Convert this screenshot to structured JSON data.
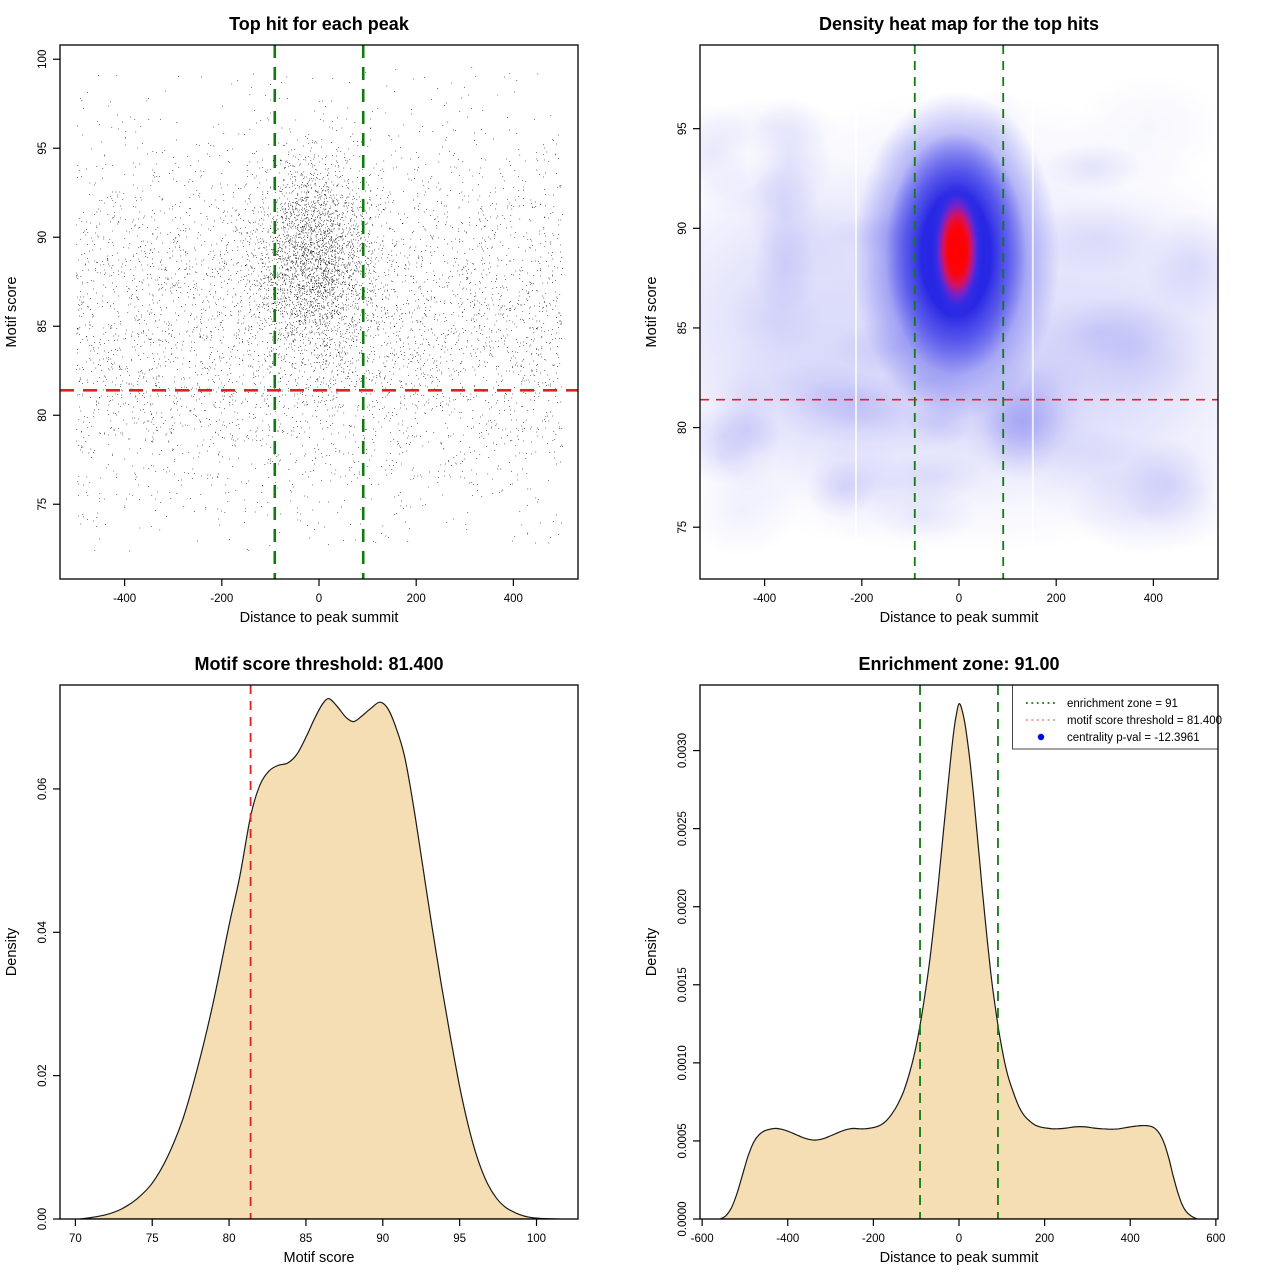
{
  "colors": {
    "threshold_red": "#de2222",
    "zone_green": "#127a12",
    "legend_red": "#f28c8c",
    "legend_blue": "#0008f0",
    "density_fill": "#f5deb3",
    "curve": "#1a1a1a",
    "heat_blue": "#4040e8",
    "heat_core_red": "#ff0000",
    "points": "#000000"
  },
  "legend": {
    "items": [
      {
        "label": "enrichment zone = 91",
        "sample": "dotted",
        "color_key": "zone_green"
      },
      {
        "label": "motif score threshold = 81.400",
        "sample": "dotted",
        "color_key": "legend_red"
      },
      {
        "label": "centrality p-val = -12.3961",
        "sample": "dot",
        "color_key": "legend_blue"
      }
    ]
  },
  "values": {
    "motif_score_threshold": 81.4,
    "enrichment_zone": 91,
    "centrality_p_val": -12.3961
  },
  "chart_data": [
    {
      "id": "scatter",
      "type": "scatter",
      "title": "Top hit for each peak",
      "xlabel": "Distance to peak summit",
      "ylabel": "Motif score",
      "xlim": [
        -533,
        533
      ],
      "ylim": [
        70.8,
        100.8
      ],
      "xticks": [
        -400,
        -200,
        0,
        200,
        400
      ],
      "xtick_labels": [
        "-400",
        "-200",
        "0",
        "200",
        "400"
      ],
      "yticks": [
        75,
        80,
        85,
        90,
        95,
        100
      ],
      "ytick_labels": [
        "75",
        "80",
        "85",
        "90",
        "95",
        "100"
      ],
      "grid": false,
      "vlines": [
        {
          "x": -91,
          "color": "zone_green",
          "width": 2.6,
          "dash": "13,9",
          "name": "enrichment-zone-line-left"
        },
        {
          "x": 91,
          "color": "zone_green",
          "width": 2.6,
          "dash": "13,9",
          "name": "enrichment-zone-line-right"
        }
      ],
      "hlines": [
        {
          "y": 81.4,
          "color": "threshold_red",
          "width": 2.6,
          "dash": "14,9",
          "name": "motif-threshold-line"
        }
      ],
      "points_spec": {
        "seed": 7,
        "marker_size": 1.0,
        "background": {
          "n": 4700,
          "x_uniform": [
            -500,
            500
          ],
          "y_normal_mean": 85.2,
          "y_normal_sd": 5.35,
          "y_clip": [
            72.3,
            99.6
          ]
        },
        "cluster": {
          "n": 2700,
          "x_normal_mean": -10,
          "x_normal_sd": 60,
          "y_normal_mean": 88.8,
          "y_normal_sd": 2.85,
          "y_clip": [
            73.5,
            99.6
          ]
        }
      }
    },
    {
      "id": "heatmap",
      "type": "heatmap",
      "title": "Density heat map for the top hits",
      "xlabel": "Distance to peak summit",
      "ylabel": "Motif score",
      "xlim": [
        -533,
        533
      ],
      "ylim": [
        72.4,
        99.2
      ],
      "xticks": [
        -400,
        -200,
        0,
        200,
        400
      ],
      "xtick_labels": [
        "-400",
        "-200",
        "0",
        "200",
        "400"
      ],
      "yticks": [
        75,
        80,
        85,
        90,
        95
      ],
      "ytick_labels": [
        "75",
        "80",
        "85",
        "90",
        "95"
      ],
      "grid": false,
      "palette": [
        "#ffffff",
        "#c8c8f0",
        "#2222e0",
        "#ff0000"
      ],
      "hotspot": {
        "x": -6,
        "y": 88.9,
        "core_half_width_bp": 55,
        "core_half_height_score": 3.4,
        "ring_half_width_bp": 145,
        "ring_half_height_score": 6.2
      },
      "noise_seed": 13,
      "noise_blobs": 36,
      "white_stripes_x": [
        -212,
        152
      ],
      "vlines": [
        {
          "x": -91,
          "color": "zone_green",
          "width": 1.8,
          "dash": "9,7",
          "name": "enrichment-zone-line-left"
        },
        {
          "x": 91,
          "color": "zone_green",
          "width": 1.8,
          "dash": "9,7",
          "name": "enrichment-zone-line-right"
        }
      ],
      "hlines": [
        {
          "y": 81.4,
          "color": "threshold_red",
          "width": 1.6,
          "dash": "9,7",
          "name": "motif-threshold-line"
        }
      ]
    },
    {
      "id": "score_density",
      "type": "area",
      "title": "Motif score threshold: 81.400",
      "xlabel": "Motif score",
      "ylabel": "Density",
      "xlim": [
        69,
        102.7
      ],
      "ylim": [
        0,
        0.0745
      ],
      "xticks": [
        70,
        75,
        80,
        85,
        90,
        95,
        100
      ],
      "xtick_labels": [
        "70",
        "75",
        "80",
        "85",
        "90",
        "95",
        "100"
      ],
      "yticks": [
        0,
        0.02,
        0.04,
        0.06
      ],
      "ytick_labels": [
        "0.00",
        "0.02",
        "0.04",
        "0.06"
      ],
      "grid": false,
      "vlines": [
        {
          "x": 81.4,
          "color": "threshold_red",
          "width": 1.8,
          "dash": "9,7",
          "name": "motif-threshold-line"
        }
      ],
      "hlines": [],
      "points": [
        [
          70.3,
          0
        ],
        [
          71,
          0.0002
        ],
        [
          72,
          0.0006
        ],
        [
          73,
          0.0014
        ],
        [
          74,
          0.0028
        ],
        [
          75,
          0.005
        ],
        [
          76,
          0.0087
        ],
        [
          77,
          0.014
        ],
        [
          78,
          0.0215
        ],
        [
          79,
          0.0305
        ],
        [
          80,
          0.041
        ],
        [
          80.7,
          0.0478
        ],
        [
          81.4,
          0.0562
        ],
        [
          82,
          0.0605
        ],
        [
          82.6,
          0.0625
        ],
        [
          83.2,
          0.0633
        ],
        [
          83.8,
          0.0636
        ],
        [
          84.4,
          0.0648
        ],
        [
          85,
          0.0672
        ],
        [
          85.6,
          0.07
        ],
        [
          86.1,
          0.0719
        ],
        [
          86.5,
          0.0726
        ],
        [
          87,
          0.0716
        ],
        [
          87.6,
          0.07
        ],
        [
          88.1,
          0.0694
        ],
        [
          88.6,
          0.0701
        ],
        [
          89.2,
          0.0712
        ],
        [
          89.8,
          0.0721
        ],
        [
          90.3,
          0.0713
        ],
        [
          90.8,
          0.0689
        ],
        [
          91.4,
          0.0647
        ],
        [
          92,
          0.0576
        ],
        [
          92.6,
          0.0492
        ],
        [
          93.2,
          0.0408
        ],
        [
          93.8,
          0.0328
        ],
        [
          94.4,
          0.0254
        ],
        [
          95,
          0.0185
        ],
        [
          95.6,
          0.0127
        ],
        [
          96.2,
          0.0082
        ],
        [
          96.8,
          0.005
        ],
        [
          97.4,
          0.0029
        ],
        [
          98,
          0.0016
        ],
        [
          98.7,
          0.0008
        ],
        [
          99.4,
          0.0003
        ],
        [
          100.2,
          0.0001
        ],
        [
          101.4,
          0
        ]
      ]
    },
    {
      "id": "position_density",
      "type": "area",
      "title": "Enrichment zone: 91.00",
      "xlabel": "Distance to peak summit",
      "ylabel": "Density",
      "xlim": [
        -605,
        605
      ],
      "ylim": [
        0,
        0.00342
      ],
      "xticks": [
        -600,
        -400,
        -200,
        0,
        200,
        400,
        600
      ],
      "xtick_labels": [
        "-600",
        "-400",
        "-200",
        "0",
        "200",
        "400",
        "600"
      ],
      "yticks": [
        0,
        0.0005,
        0.001,
        0.0015,
        0.002,
        0.0025,
        0.003
      ],
      "ytick_labels": [
        "0.0000",
        "0.0005",
        "0.0010",
        "0.0015",
        "0.0020",
        "0.0025",
        "0.0030"
      ],
      "grid": false,
      "has_legend": true,
      "vlines": [
        {
          "x": -91,
          "color": "zone_green",
          "width": 1.8,
          "dash": "10,7",
          "name": "enrichment-zone-line-left"
        },
        {
          "x": 91,
          "color": "zone_green",
          "width": 1.8,
          "dash": "10,7",
          "name": "enrichment-zone-line-right"
        }
      ],
      "hlines": [],
      "points": [
        [
          -558,
          0
        ],
        [
          -545,
          2e-05
        ],
        [
          -532,
          7e-05
        ],
        [
          -519,
          0.00016
        ],
        [
          -506,
          0.00028
        ],
        [
          -493,
          0.0004
        ],
        [
          -480,
          0.00049
        ],
        [
          -467,
          0.00054
        ],
        [
          -454,
          0.000565
        ],
        [
          -441,
          0.000575
        ],
        [
          -428,
          0.00058
        ],
        [
          -415,
          0.000575
        ],
        [
          -402,
          0.000565
        ],
        [
          -389,
          0.00055
        ],
        [
          -376,
          0.000535
        ],
        [
          -363,
          0.00052
        ],
        [
          -350,
          0.00051
        ],
        [
          -337,
          0.000505
        ],
        [
          -324,
          0.00051
        ],
        [
          -311,
          0.00052
        ],
        [
          -298,
          0.000535
        ],
        [
          -285,
          0.00055
        ],
        [
          -272,
          0.000565
        ],
        [
          -259,
          0.000575
        ],
        [
          -246,
          0.00058
        ],
        [
          -233,
          0.000578
        ],
        [
          -220,
          0.000578
        ],
        [
          -207,
          0.000582
        ],
        [
          -194,
          0.00059
        ],
        [
          -181,
          0.000605
        ],
        [
          -168,
          0.000635
        ],
        [
          -155,
          0.00068
        ],
        [
          -142,
          0.00074
        ],
        [
          -129,
          0.00082
        ],
        [
          -116,
          0.00093
        ],
        [
          -103,
          0.00107
        ],
        [
          -91,
          0.00124
        ],
        [
          -80,
          0.00143
        ],
        [
          -70,
          0.00162
        ],
        [
          -60,
          0.00185
        ],
        [
          -50,
          0.0021
        ],
        [
          -40,
          0.00238
        ],
        [
          -30,
          0.00266
        ],
        [
          -20,
          0.00293
        ],
        [
          -12,
          0.00313
        ],
        [
          -5,
          0.00325
        ],
        [
          0,
          0.0033
        ],
        [
          6,
          0.00327
        ],
        [
          14,
          0.00317
        ],
        [
          24,
          0.00297
        ],
        [
          34,
          0.00271
        ],
        [
          44,
          0.00242
        ],
        [
          54,
          0.00212
        ],
        [
          64,
          0.00184
        ],
        [
          74,
          0.00158
        ],
        [
          84,
          0.00137
        ],
        [
          94,
          0.00119
        ],
        [
          104,
          0.00104
        ],
        [
          114,
          0.00092
        ],
        [
          127,
          0.00081
        ],
        [
          140,
          0.00072
        ],
        [
          153,
          0.00066
        ],
        [
          166,
          0.000625
        ],
        [
          179,
          0.0006
        ],
        [
          192,
          0.000588
        ],
        [
          205,
          0.000582
        ],
        [
          218,
          0.000578
        ],
        [
          231,
          0.000578
        ],
        [
          244,
          0.00058
        ],
        [
          257,
          0.000585
        ],
        [
          270,
          0.00059
        ],
        [
          283,
          0.000592
        ],
        [
          296,
          0.00059
        ],
        [
          309,
          0.000585
        ],
        [
          322,
          0.00058
        ],
        [
          335,
          0.000578
        ],
        [
          348,
          0.000576
        ],
        [
          361,
          0.000575
        ],
        [
          374,
          0.000578
        ],
        [
          387,
          0.000584
        ],
        [
          400,
          0.00059
        ],
        [
          413,
          0.000595
        ],
        [
          426,
          0.000598
        ],
        [
          439,
          0.000598
        ],
        [
          450,
          0.000592
        ],
        [
          460,
          0.000575
        ],
        [
          470,
          0.00054
        ],
        [
          480,
          0.00048
        ],
        [
          490,
          0.00039
        ],
        [
          500,
          0.00028
        ],
        [
          510,
          0.00018
        ],
        [
          520,
          0.0001
        ],
        [
          530,
          5e-05
        ],
        [
          542,
          2e-05
        ],
        [
          556,
          0
        ]
      ]
    }
  ]
}
